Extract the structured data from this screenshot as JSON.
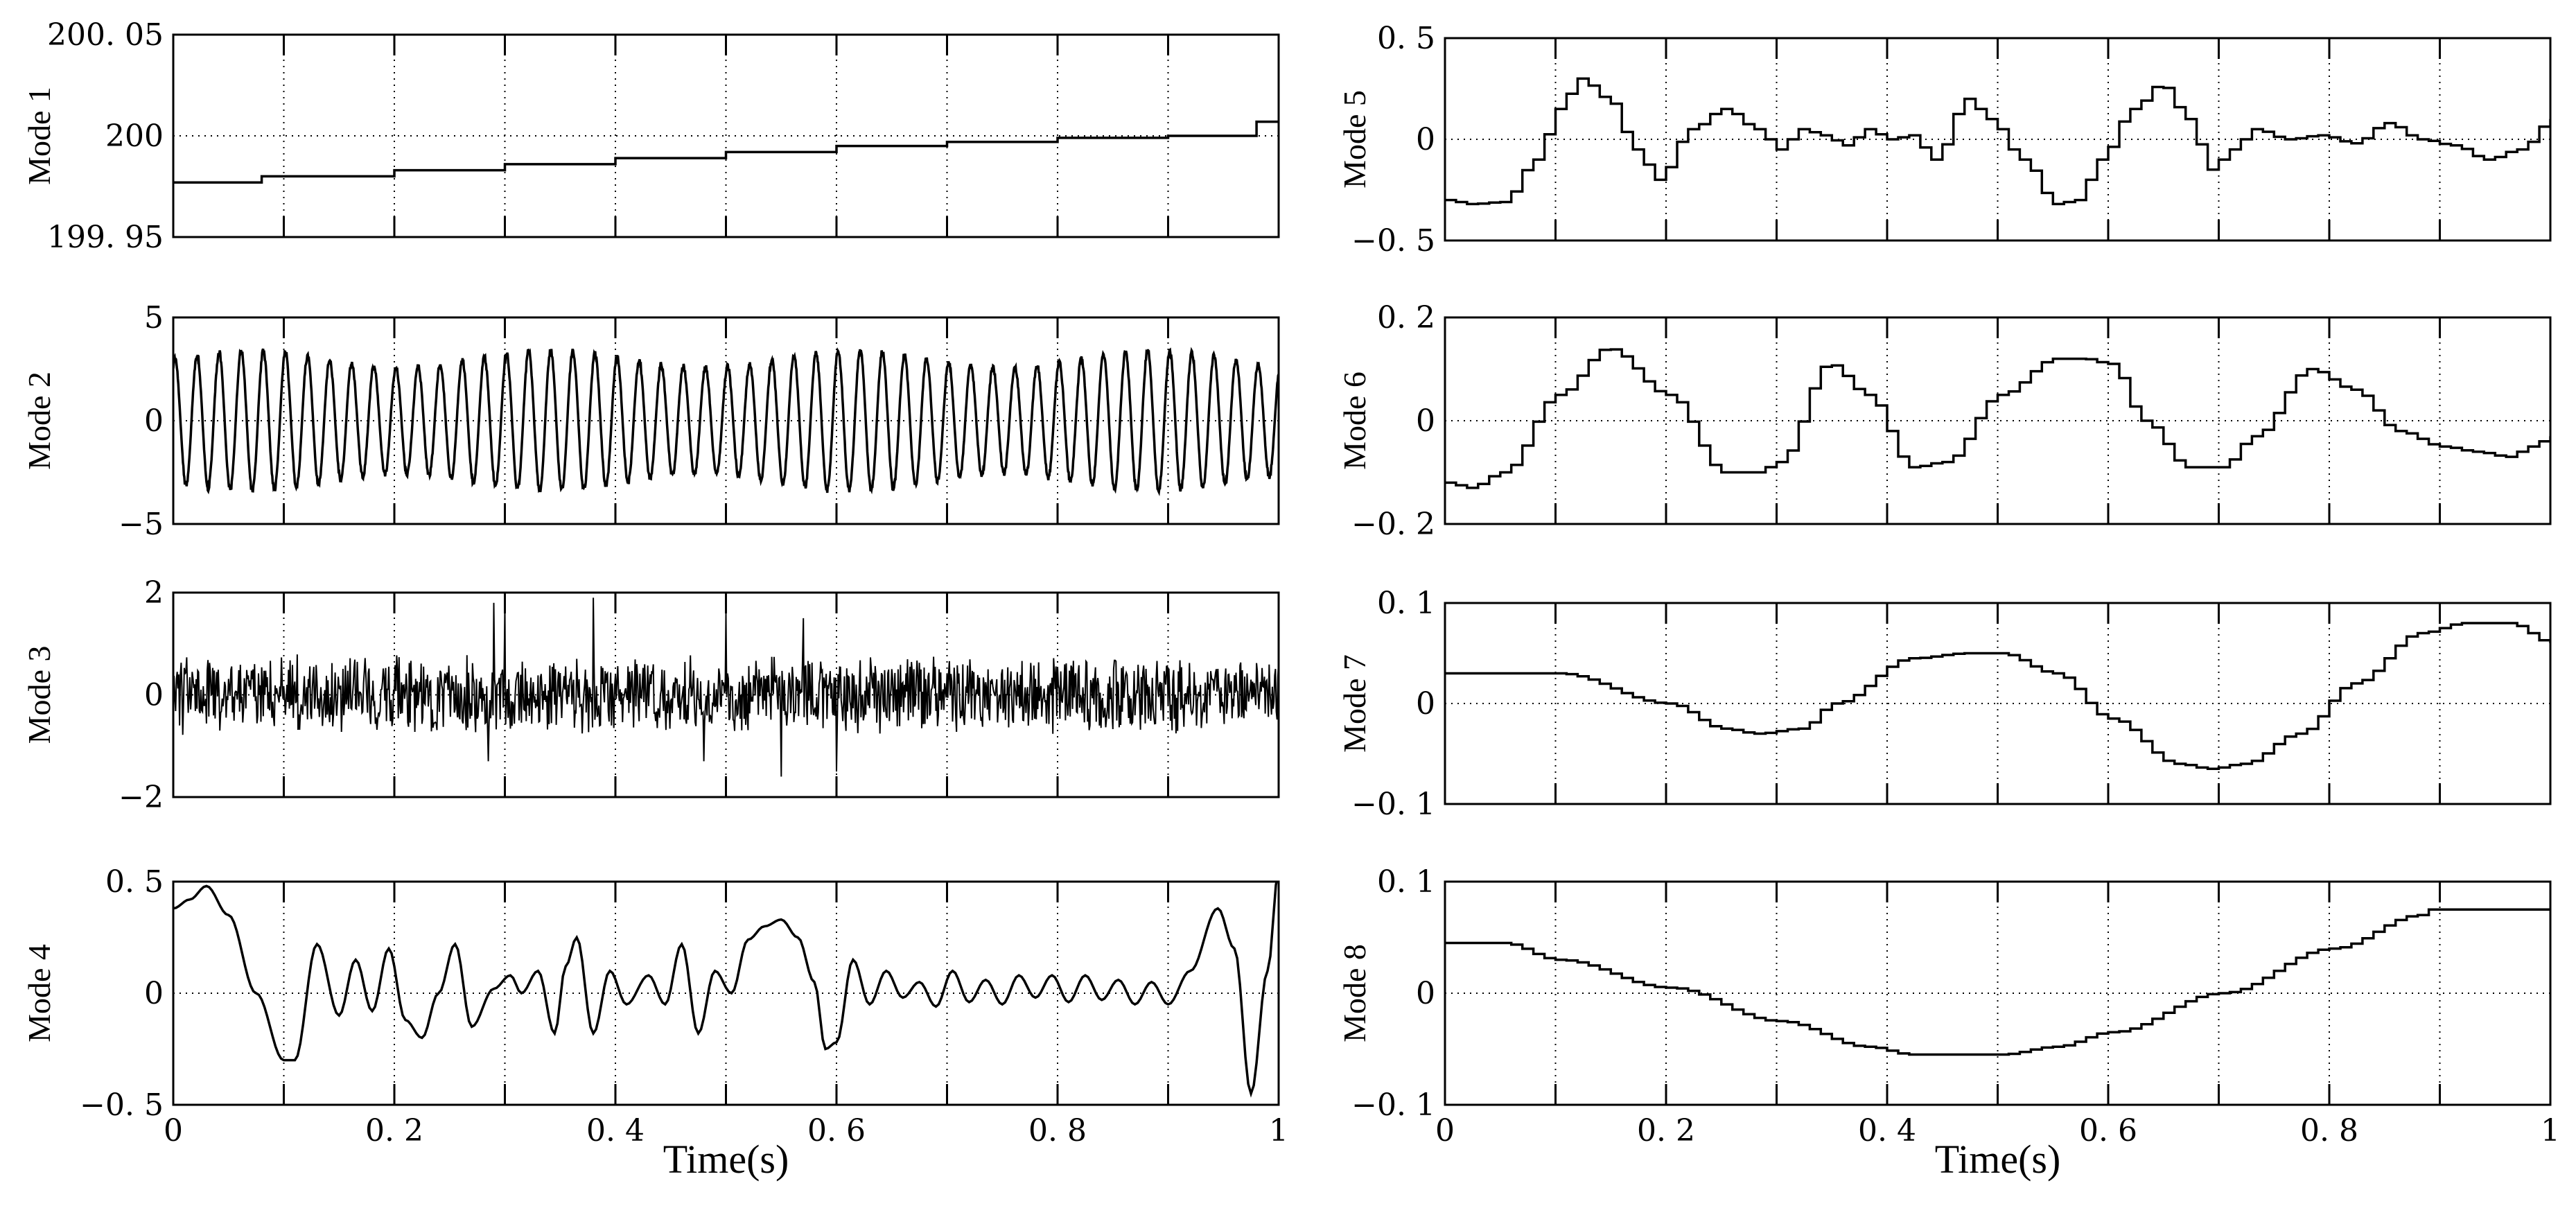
{
  "chart_data": [
    {
      "type": "line",
      "panel": "left-1",
      "ylabel": "Mode 1",
      "xlabel": "",
      "xlim": [
        0,
        1
      ],
      "ylim": [
        199.95,
        200.05
      ],
      "yticks": [
        {
          "value": 200.05,
          "label": "200. 05"
        },
        {
          "value": 200,
          "label": "200"
        },
        {
          "value": 199.95,
          "label": "199. 95"
        }
      ],
      "xticks": [],
      "grid_dotted_y": [
        200
      ],
      "signal": "staircase",
      "series": [
        {
          "x": [
            0,
            0.08,
            0.2,
            0.3,
            0.4,
            0.5,
            0.6,
            0.7,
            0.8,
            0.9,
            0.98,
            1
          ],
          "y": [
            199.977,
            199.98,
            199.983,
            199.986,
            199.989,
            199.992,
            199.995,
            199.997,
            199.999,
            200.0,
            200.007,
            200.007
          ]
        }
      ]
    },
    {
      "type": "line",
      "panel": "left-2",
      "ylabel": "Mode 2",
      "xlabel": "",
      "xlim": [
        0,
        1
      ],
      "ylim": [
        -5,
        5
      ],
      "yticks": [
        {
          "value": 5,
          "label": "5"
        },
        {
          "value": 0,
          "label": "0"
        },
        {
          "value": -5,
          "label": "−5"
        }
      ],
      "xticks": [],
      "grid_dotted_y": [
        0
      ],
      "signal": "oscillation",
      "frequency_hz": 50,
      "amplitude": 3.4
    },
    {
      "type": "line",
      "panel": "left-3",
      "ylabel": "Mode 3",
      "xlabel": "",
      "xlim": [
        0,
        1
      ],
      "ylim": [
        -2,
        2
      ],
      "yticks": [
        {
          "value": 2,
          "label": "2"
        },
        {
          "value": 0,
          "label": "0"
        },
        {
          "value": -2,
          "label": "−2"
        }
      ],
      "xticks": [],
      "grid_dotted_y": [
        0
      ],
      "signal": "noise",
      "amplitude": 0.8,
      "spikes": [
        {
          "x": 0.285,
          "y": -1.3
        },
        {
          "x": 0.29,
          "y": 1.8
        },
        {
          "x": 0.3,
          "y": 1.7
        },
        {
          "x": 0.38,
          "y": 1.9
        },
        {
          "x": 0.48,
          "y": -1.3
        },
        {
          "x": 0.5,
          "y": 1.6
        },
        {
          "x": 0.55,
          "y": -1.6
        },
        {
          "x": 0.57,
          "y": 1.5
        },
        {
          "x": 0.6,
          "y": -1.5
        }
      ]
    },
    {
      "type": "line",
      "panel": "left-4",
      "ylabel": "Mode 4",
      "xlabel": "Time(s)",
      "xlim": [
        0,
        1
      ],
      "ylim": [
        -0.5,
        0.5
      ],
      "yticks": [
        {
          "value": 0.5,
          "label": "0. 5"
        },
        {
          "value": 0,
          "label": "0"
        },
        {
          "value": -0.5,
          "label": "−0. 5"
        }
      ],
      "xticks": [
        {
          "value": 0,
          "label": "0"
        },
        {
          "value": 0.2,
          "label": "0. 2"
        },
        {
          "value": 0.4,
          "label": "0. 4"
        },
        {
          "value": 0.6,
          "label": "0. 6"
        },
        {
          "value": 0.8,
          "label": "0. 8"
        },
        {
          "value": 1,
          "label": "1"
        }
      ],
      "grid_dotted_y": [
        0
      ],
      "signal": "smooth",
      "series": [
        {
          "x": [
            0,
            0.015,
            0.03,
            0.05,
            0.075,
            0.1,
            0.11,
            0.13,
            0.15,
            0.165,
            0.18,
            0.195,
            0.21,
            0.225,
            0.24,
            0.255,
            0.27,
            0.29,
            0.305,
            0.315,
            0.33,
            0.345,
            0.355,
            0.365,
            0.38,
            0.395,
            0.41,
            0.43,
            0.445,
            0.46,
            0.475,
            0.49,
            0.505,
            0.52,
            0.535,
            0.55,
            0.565,
            0.58,
            0.59,
            0.6,
            0.615,
            0.63,
            0.645,
            0.66,
            0.675,
            0.69,
            0.705,
            0.72,
            0.735,
            0.75,
            0.765,
            0.78,
            0.795,
            0.81,
            0.825,
            0.84,
            0.855,
            0.87,
            0.885,
            0.9,
            0.92,
            0.945,
            0.96,
            0.975,
            0.99,
            1
          ],
          "y": [
            0.38,
            0.42,
            0.48,
            0.35,
            0.0,
            -0.3,
            -0.3,
            0.22,
            -0.1,
            0.15,
            -0.08,
            0.2,
            -0.12,
            -0.2,
            0.0,
            0.22,
            -0.15,
            0.02,
            0.08,
            0.0,
            0.1,
            -0.18,
            0.12,
            0.25,
            -0.18,
            0.1,
            -0.05,
            0.08,
            -0.05,
            0.22,
            -0.18,
            0.1,
            0.0,
            0.24,
            0.3,
            0.33,
            0.25,
            0.05,
            -0.25,
            -0.22,
            0.15,
            -0.05,
            0.1,
            -0.02,
            0.05,
            -0.06,
            0.1,
            -0.04,
            0.06,
            -0.05,
            0.08,
            -0.02,
            0.08,
            -0.04,
            0.08,
            -0.03,
            0.06,
            -0.05,
            0.05,
            -0.05,
            0.1,
            0.38,
            0.2,
            -0.45,
            0.1,
            0.55
          ]
        }
      ]
    },
    {
      "type": "line",
      "panel": "right-1",
      "ylabel": "Mode 5",
      "xlabel": "",
      "xlim": [
        0,
        1
      ],
      "ylim": [
        -0.5,
        0.5
      ],
      "yticks": [
        {
          "value": 0.5,
          "label": "0. 5"
        },
        {
          "value": 0,
          "label": "0"
        },
        {
          "value": -0.5,
          "label": "−0. 5"
        }
      ],
      "xticks": [],
      "grid_dotted_y": [
        0
      ],
      "signal": "steps",
      "series": [
        {
          "x": [
            0,
            0.02,
            0.05,
            0.08,
            0.1,
            0.12,
            0.145,
            0.17,
            0.19,
            0.22,
            0.25,
            0.28,
            0.3,
            0.32,
            0.34,
            0.36,
            0.38,
            0.4,
            0.42,
            0.44,
            0.47,
            0.49,
            0.52,
            0.55,
            0.57,
            0.59,
            0.62,
            0.645,
            0.67,
            0.69,
            0.71,
            0.73,
            0.76,
            0.79,
            0.82,
            0.85,
            0.88,
            0.91,
            0.94,
            0.97,
            1
          ],
          "y": [
            -0.3,
            -0.32,
            -0.31,
            -0.1,
            0.15,
            0.3,
            0.2,
            -0.05,
            -0.2,
            0.05,
            0.15,
            0.05,
            -0.05,
            0.05,
            0.02,
            -0.03,
            0.05,
            0.0,
            0.02,
            -0.1,
            0.2,
            0.1,
            -0.1,
            -0.32,
            -0.3,
            -0.1,
            0.15,
            0.27,
            0.1,
            -0.15,
            -0.05,
            0.05,
            0.0,
            0.02,
            -0.02,
            0.08,
            0.0,
            -0.03,
            -0.1,
            -0.05,
            0.1
          ]
        }
      ]
    },
    {
      "type": "line",
      "panel": "right-2",
      "ylabel": "Mode 6",
      "xlabel": "",
      "xlim": [
        0,
        1
      ],
      "ylim": [
        -0.2,
        0.2
      ],
      "yticks": [
        {
          "value": 0.2,
          "label": "0. 2"
        },
        {
          "value": 0,
          "label": "0"
        },
        {
          "value": -0.2,
          "label": "−0. 2"
        }
      ],
      "xticks": [],
      "grid_dotted_y": [
        0
      ],
      "signal": "steps",
      "series": [
        {
          "x": [
            0,
            0.02,
            0.05,
            0.1,
            0.145,
            0.2,
            0.25,
            0.28,
            0.3,
            0.345,
            0.38,
            0.42,
            0.45,
            0.5,
            0.55,
            0.575,
            0.6,
            0.63,
            0.67,
            0.7,
            0.73,
            0.78,
            0.82,
            0.86,
            0.9,
            0.93,
            0.96,
            0.98,
            1
          ],
          "y": [
            -0.12,
            -0.13,
            -0.1,
            0.05,
            0.14,
            0.05,
            -0.1,
            -0.1,
            -0.08,
            0.11,
            0.05,
            -0.09,
            -0.08,
            0.05,
            0.12,
            0.12,
            0.11,
            0.0,
            -0.09,
            -0.09,
            -0.03,
            0.1,
            0.06,
            -0.02,
            -0.05,
            -0.06,
            -0.07,
            -0.05,
            -0.03
          ]
        }
      ]
    },
    {
      "type": "line",
      "panel": "right-3",
      "ylabel": "Mode 7",
      "xlabel": "",
      "xlim": [
        0,
        1
      ],
      "ylim": [
        -0.1,
        0.1
      ],
      "yticks": [
        {
          "value": 0.1,
          "label": "0. 1"
        },
        {
          "value": 0,
          "label": "0"
        },
        {
          "value": -0.1,
          "label": "−0. 1"
        }
      ],
      "xticks": [],
      "grid_dotted_y": [
        0
      ],
      "signal": "steps",
      "series": [
        {
          "x": [
            0,
            0.1,
            0.2,
            0.25,
            0.28,
            0.32,
            0.35,
            0.42,
            0.47,
            0.5,
            0.55,
            0.6,
            0.66,
            0.69,
            0.72,
            0.77,
            0.82,
            0.88,
            0.92,
            0.96,
            1
          ],
          "y": [
            0.03,
            0.03,
            0.0,
            -0.025,
            -0.03,
            -0.025,
            0.0,
            0.045,
            0.05,
            0.05,
            0.03,
            -0.015,
            -0.06,
            -0.065,
            -0.06,
            -0.03,
            0.02,
            0.07,
            0.08,
            0.08,
            0.06
          ]
        }
      ]
    },
    {
      "type": "line",
      "panel": "right-4",
      "ylabel": "Mode 8",
      "xlabel": "Time(s)",
      "xlim": [
        0,
        1
      ],
      "ylim": [
        -0.1,
        0.1
      ],
      "yticks": [
        {
          "value": 0.1,
          "label": "0. 1"
        },
        {
          "value": 0,
          "label": "0"
        },
        {
          "value": -0.1,
          "label": "−0. 1"
        }
      ],
      "xticks": [
        {
          "value": 0,
          "label": "0"
        },
        {
          "value": 0.2,
          "label": "0. 2"
        },
        {
          "value": 0.4,
          "label": "0. 4"
        },
        {
          "value": 0.6,
          "label": "0. 6"
        },
        {
          "value": 0.8,
          "label": "0. 8"
        },
        {
          "value": 1,
          "label": "1"
        }
      ],
      "grid_dotted_y": [
        0
      ],
      "signal": "steps",
      "series": [
        {
          "x": [
            0,
            0.05,
            0.1,
            0.2,
            0.3,
            0.38,
            0.42,
            0.5,
            0.55,
            0.6,
            0.7,
            0.8,
            0.88,
            0.89,
            1
          ],
          "y": [
            0.045,
            0.045,
            0.03,
            0.005,
            -0.025,
            -0.048,
            -0.055,
            -0.055,
            -0.048,
            -0.035,
            0.0,
            0.04,
            0.07,
            0.075,
            0.075
          ]
        }
      ]
    }
  ]
}
